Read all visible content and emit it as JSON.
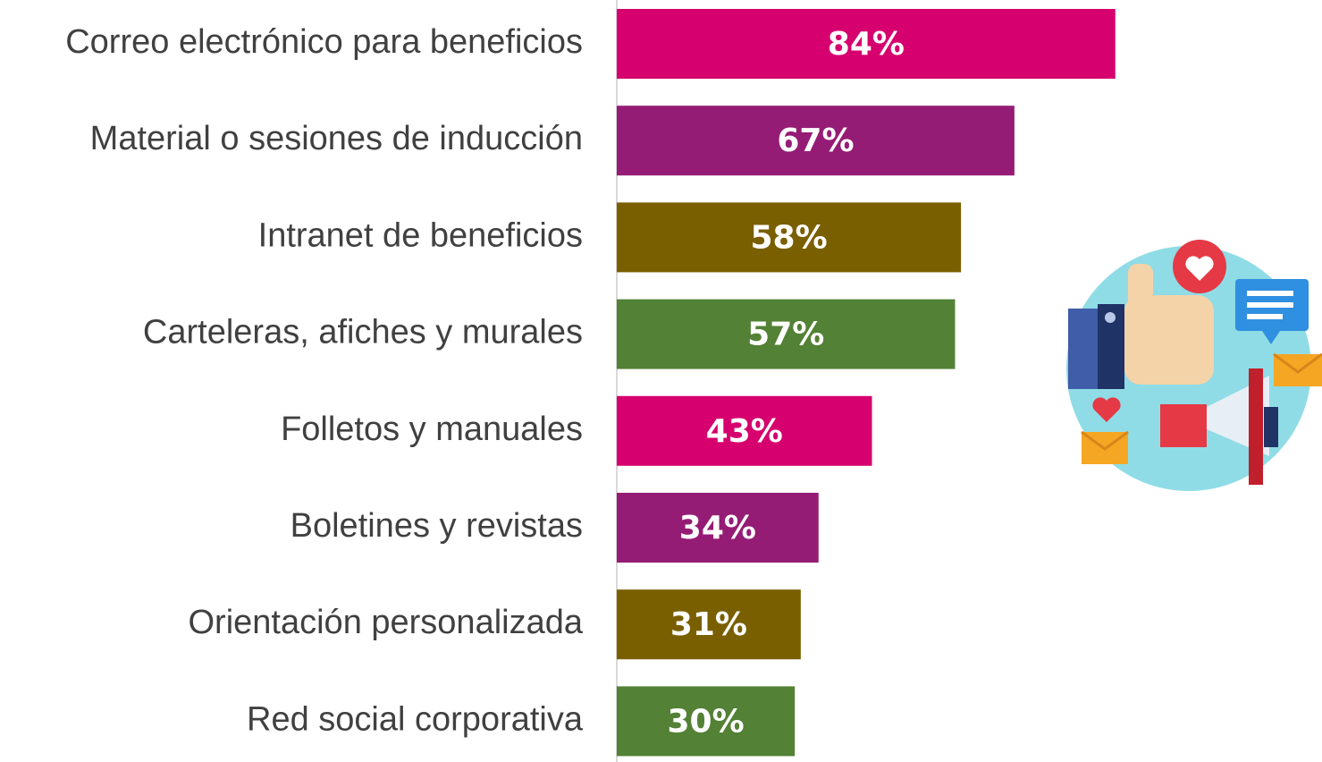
{
  "chart_data": {
    "type": "bar",
    "orientation": "horizontal",
    "categories": [
      "Correo electrónico para beneficios",
      "Material o sesiones de inducción",
      "Intranet de beneficios",
      "Carteleras, afiches y murales",
      "Folletos y manuales",
      "Boletines y revistas",
      "Orientación personalizada",
      "Red social corporativa"
    ],
    "values": [
      84,
      67,
      58,
      57,
      43,
      34,
      31,
      30
    ],
    "value_labels": [
      "84%",
      "67%",
      "58%",
      "57%",
      "43%",
      "34%",
      "31%",
      "30%"
    ],
    "colors": [
      "#d6006e",
      "#951c75",
      "#7a5f00",
      "#538135",
      "#d6006e",
      "#951c75",
      "#7a5f00",
      "#538135"
    ],
    "xlim": [
      0,
      100
    ]
  }
}
